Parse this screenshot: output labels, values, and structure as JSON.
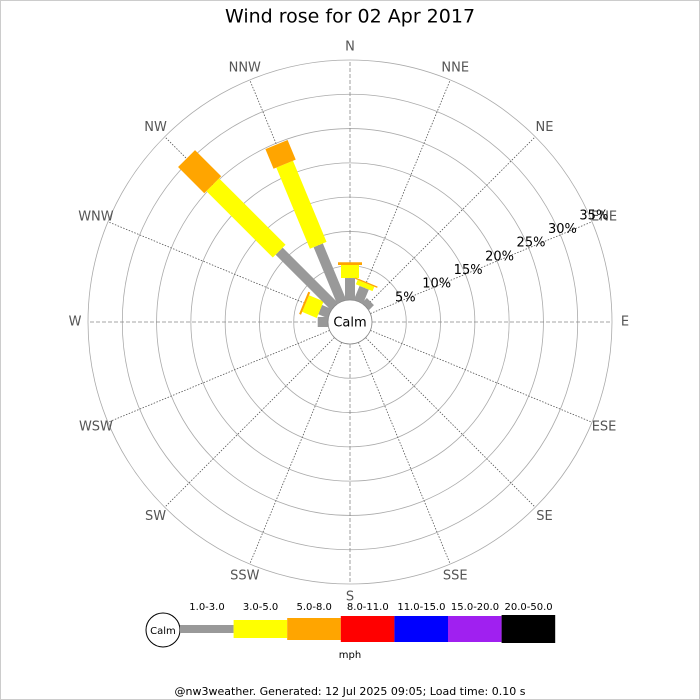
{
  "chart_data": {
    "type": "windrose",
    "title": "Wind rose for 02 Apr 2017",
    "directions": [
      "N",
      "NNE",
      "NE",
      "ENE",
      "E",
      "ESE",
      "SE",
      "SSE",
      "S",
      "SSW",
      "SW",
      "WSW",
      "W",
      "WNW",
      "NW",
      "NNW"
    ],
    "calm_label": "Calm",
    "rlim": [
      0,
      35
    ],
    "rticks": [
      {
        "value": 5,
        "label": "5%"
      },
      {
        "value": 10,
        "label": "10%"
      },
      {
        "value": 15,
        "label": "15%"
      },
      {
        "value": 20,
        "label": "20%"
      },
      {
        "value": 25,
        "label": "25%"
      },
      {
        "value": 30,
        "label": "30%"
      },
      {
        "value": 35,
        "label": "35%"
      }
    ],
    "series": [
      {
        "name": "1.0-3.0",
        "color": "#999999",
        "values": [
          3.2,
          2.2,
          1.0,
          0,
          0,
          0,
          0,
          0,
          0,
          0,
          0,
          0,
          1.5,
          1.5,
          11.4,
          8.9
        ]
      },
      {
        "name": "3.0-5.0",
        "color": "#ffff00",
        "values": [
          1.9,
          0.7,
          0,
          0,
          0,
          0,
          0,
          0,
          0,
          0,
          0,
          0,
          0,
          2.3,
          13.7,
          12.8
        ]
      },
      {
        "name": "5.0-8.0",
        "color": "#ffa500",
        "values": [
          0.4,
          0.2,
          0,
          0,
          0,
          0,
          0,
          0,
          0,
          0,
          0,
          0,
          0,
          0.3,
          5.4,
          3.1
        ]
      },
      {
        "name": "8.0-11.0",
        "color": "#ff0000",
        "values": [
          0,
          0,
          0,
          0,
          0,
          0,
          0,
          0,
          0,
          0,
          0,
          0,
          0,
          0,
          0,
          0
        ]
      },
      {
        "name": "11.0-15.0",
        "color": "#0000ff",
        "values": [
          0,
          0,
          0,
          0,
          0,
          0,
          0,
          0,
          0,
          0,
          0,
          0,
          0,
          0,
          0,
          0
        ]
      },
      {
        "name": "15.0-20.0",
        "color": "#a020f0",
        "values": [
          0,
          0,
          0,
          0,
          0,
          0,
          0,
          0,
          0,
          0,
          0,
          0,
          0,
          0,
          0,
          0
        ]
      },
      {
        "name": "20.0-50.0",
        "color": "#000000",
        "values": [
          0,
          0,
          0,
          0,
          0,
          0,
          0,
          0,
          0,
          0,
          0,
          0,
          0,
          0,
          0,
          0
        ]
      }
    ],
    "units": "mph",
    "footer": "@nw3weather. Generated: 12 Jul 2025 09:05; Load time: 0.10 s"
  }
}
